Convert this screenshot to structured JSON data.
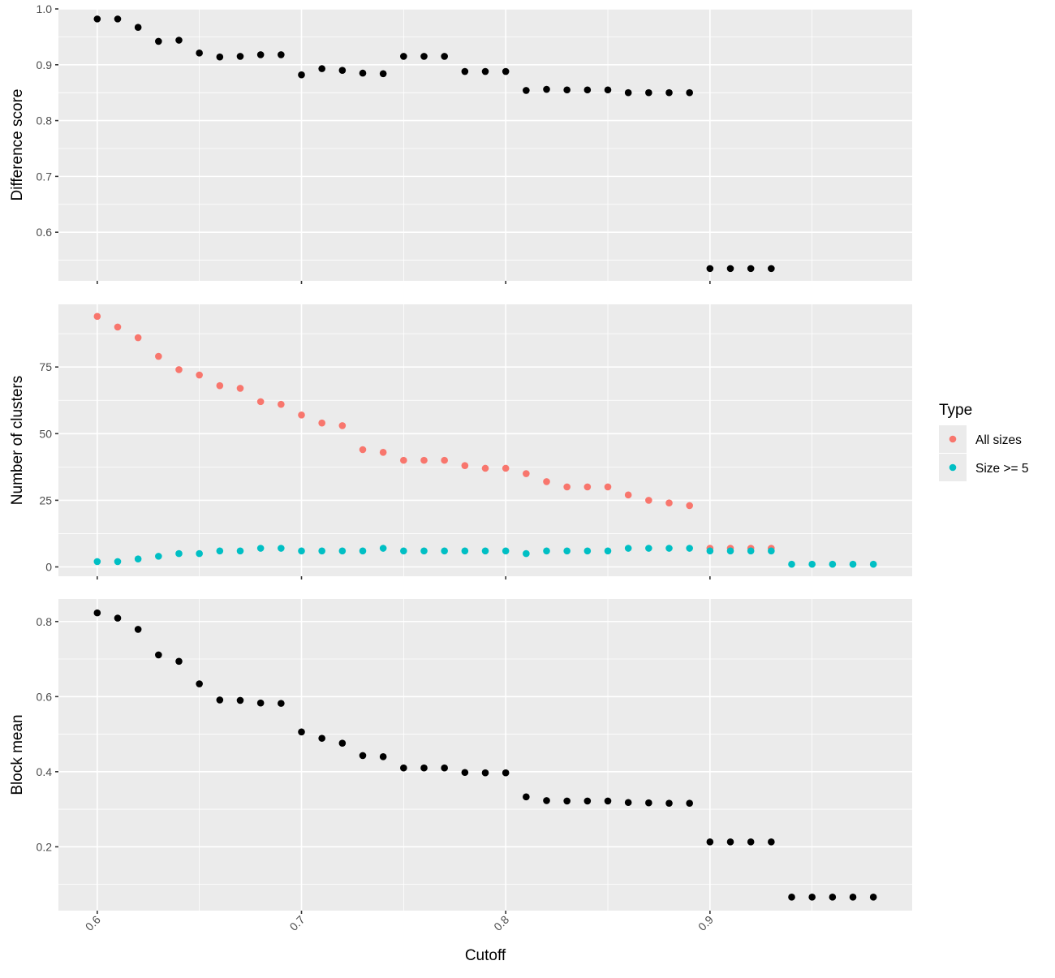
{
  "chart_data": {
    "type": "scatter",
    "x_axis": {
      "label": "Cutoff",
      "ticks": [
        0.6,
        0.7,
        0.8,
        0.9
      ],
      "tick_labels": [
        "0.6",
        "0.7",
        "0.8",
        "0.9"
      ],
      "range": [
        0.581,
        0.999
      ]
    },
    "legend": {
      "title": "Type",
      "position": "right",
      "entries": [
        {
          "label": "All sizes",
          "color": "#F8766D"
        },
        {
          "label": "Size >= 5",
          "color": "#00BFC4"
        }
      ]
    },
    "panels": [
      {
        "id": "difference",
        "ylabel": "Difference score",
        "ylim": [
          0.513,
          1.0
        ],
        "y_ticks": [
          0.6,
          0.7,
          0.8,
          0.9,
          1.0
        ],
        "y_tick_labels": [
          "0.6",
          "0.7",
          "0.8",
          "0.9",
          "1.0"
        ],
        "y_minor": [
          0.55,
          0.65,
          0.75,
          0.85,
          0.95
        ],
        "series": [
          {
            "color": "#000000",
            "x": [
              0.6,
              0.61,
              0.62,
              0.63,
              0.64,
              0.65,
              0.66,
              0.67,
              0.68,
              0.69,
              0.7,
              0.71,
              0.72,
              0.73,
              0.74,
              0.75,
              0.76,
              0.77,
              0.78,
              0.79,
              0.8,
              0.81,
              0.82,
              0.83,
              0.84,
              0.85,
              0.86,
              0.87,
              0.88,
              0.89,
              0.9,
              0.91,
              0.92,
              0.93
            ],
            "y": [
              0.982,
              0.982,
              0.967,
              0.942,
              0.944,
              0.921,
              0.914,
              0.915,
              0.918,
              0.918,
              0.882,
              0.893,
              0.89,
              0.885,
              0.884,
              0.915,
              0.915,
              0.915,
              0.888,
              0.888,
              0.888,
              0.854,
              0.856,
              0.855,
              0.855,
              0.855,
              0.85,
              0.85,
              0.85,
              0.85,
              0.535,
              0.535,
              0.535,
              0.535
            ]
          }
        ]
      },
      {
        "id": "clusters",
        "ylabel": "Number of clusters",
        "ylim": [
          -3.5,
          98.5
        ],
        "y_ticks": [
          0,
          25,
          50,
          75
        ],
        "y_tick_labels": [
          "0",
          "25",
          "50",
          "75"
        ],
        "y_minor": [
          12.5,
          37.5,
          62.5,
          87.5
        ],
        "series": [
          {
            "name": "All sizes",
            "color": "#F8766D",
            "x": [
              0.6,
              0.61,
              0.62,
              0.63,
              0.64,
              0.65,
              0.66,
              0.67,
              0.68,
              0.69,
              0.7,
              0.71,
              0.72,
              0.73,
              0.74,
              0.75,
              0.76,
              0.77,
              0.78,
              0.79,
              0.8,
              0.81,
              0.82,
              0.83,
              0.84,
              0.85,
              0.86,
              0.87,
              0.88,
              0.89,
              0.9,
              0.91,
              0.92,
              0.93
            ],
            "y": [
              94,
              90,
              86,
              79,
              74,
              72,
              68,
              67,
              62,
              61,
              57,
              54,
              53,
              44,
              43,
              40,
              40,
              40,
              38,
              37,
              37,
              35,
              32,
              30,
              30,
              30,
              27,
              25,
              24,
              23,
              7,
              7,
              7,
              7
            ]
          },
          {
            "name": "Size >= 5",
            "color": "#00BFC4",
            "x": [
              0.6,
              0.61,
              0.62,
              0.63,
              0.64,
              0.65,
              0.66,
              0.67,
              0.68,
              0.69,
              0.7,
              0.71,
              0.72,
              0.73,
              0.74,
              0.75,
              0.76,
              0.77,
              0.78,
              0.79,
              0.8,
              0.81,
              0.82,
              0.83,
              0.84,
              0.85,
              0.86,
              0.87,
              0.88,
              0.89,
              0.9,
              0.91,
              0.92,
              0.93,
              0.94,
              0.95,
              0.96,
              0.97,
              0.98
            ],
            "y": [
              2,
              2,
              3,
              4,
              5,
              5,
              6,
              6,
              7,
              7,
              6,
              6,
              6,
              6,
              7,
              6,
              6,
              6,
              6,
              6,
              6,
              5,
              6,
              6,
              6,
              6,
              7,
              7,
              7,
              7,
              6,
              6,
              6,
              6,
              1,
              1,
              1,
              1,
              1
            ]
          }
        ]
      },
      {
        "id": "blockmean",
        "ylabel": "Block mean",
        "ylim": [
          0.03,
          0.86
        ],
        "y_ticks": [
          0.2,
          0.4,
          0.6,
          0.8
        ],
        "y_tick_labels": [
          "0.2",
          "0.4",
          "0.6",
          "0.8"
        ],
        "y_minor": [
          0.1,
          0.3,
          0.5,
          0.7
        ],
        "series": [
          {
            "color": "#000000",
            "x": [
              0.6,
              0.61,
              0.62,
              0.63,
              0.64,
              0.65,
              0.66,
              0.67,
              0.68,
              0.69,
              0.7,
              0.71,
              0.72,
              0.73,
              0.74,
              0.75,
              0.76,
              0.77,
              0.78,
              0.79,
              0.8,
              0.81,
              0.82,
              0.83,
              0.84,
              0.85,
              0.86,
              0.87,
              0.88,
              0.89,
              0.9,
              0.91,
              0.92,
              0.93,
              0.94,
              0.95,
              0.96,
              0.97,
              0.98
            ],
            "y": [
              0.823,
              0.809,
              0.779,
              0.711,
              0.694,
              0.634,
              0.591,
              0.59,
              0.583,
              0.582,
              0.506,
              0.489,
              0.476,
              0.443,
              0.44,
              0.41,
              0.41,
              0.41,
              0.398,
              0.397,
              0.397,
              0.333,
              0.323,
              0.322,
              0.322,
              0.322,
              0.318,
              0.317,
              0.316,
              0.316,
              0.213,
              0.213,
              0.213,
              0.213,
              0.066,
              0.066,
              0.066,
              0.066,
              0.066
            ]
          }
        ]
      }
    ]
  }
}
